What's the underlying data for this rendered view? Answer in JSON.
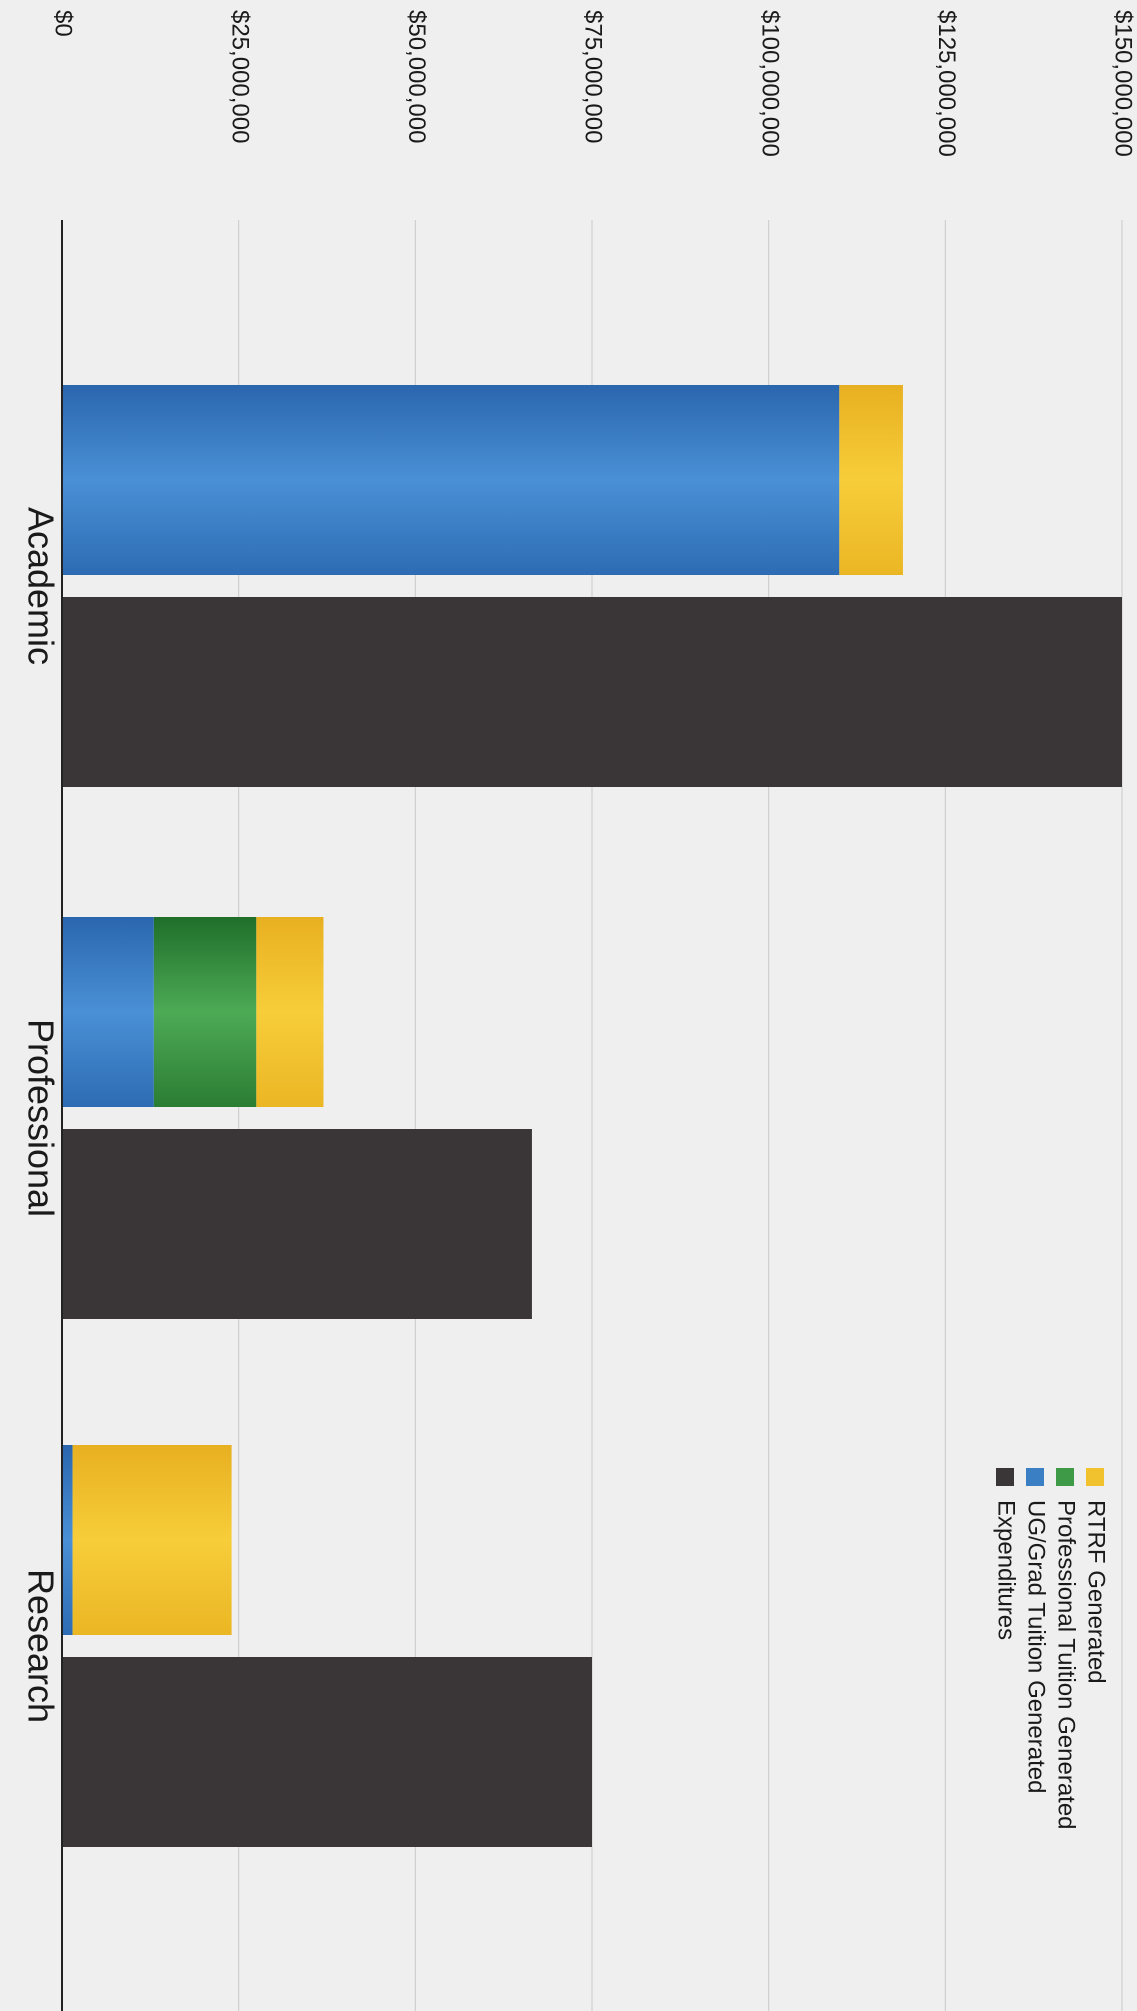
{
  "chart_data": {
    "type": "bar",
    "orientation": "horizontal",
    "value_axis_ticks": [
      "$0",
      "$25,000,000",
      "$50,000,000",
      "$75,000,000",
      "$100,000,000",
      "$125,000,000",
      "$150,000,000"
    ],
    "value_axis_range": [
      0,
      150000000
    ],
    "grid": true,
    "legend_placement": "top-right",
    "categories": [
      "Academic",
      "Professional",
      "Research"
    ],
    "stacked_series": [
      {
        "name": "UG/Grad Tuition Generated",
        "color": "#3a7ec4",
        "values": [
          110000000,
          13000000,
          1500000
        ]
      },
      {
        "name": "Professional Tuition Generated",
        "color": "#3e9a47",
        "values": [
          0,
          14500000,
          0
        ]
      },
      {
        "name": "RTRF Generated",
        "color": "#f2c12e",
        "values": [
          9000000,
          9500000,
          22500000
        ]
      }
    ],
    "separate_series": [
      {
        "name": "Expenditures",
        "color": "#3a3637",
        "values": [
          150000000,
          66500000,
          75000000
        ]
      }
    ],
    "legend": [
      {
        "name": "RTRF Generated",
        "color": "#f2c12e"
      },
      {
        "name": "Professional Tuition Generated",
        "color": "#3e9a47"
      },
      {
        "name": "UG/Grad Tuition Generated",
        "color": "#3a7ec4"
      },
      {
        "name": "Expenditures",
        "color": "#3a3637"
      }
    ]
  }
}
